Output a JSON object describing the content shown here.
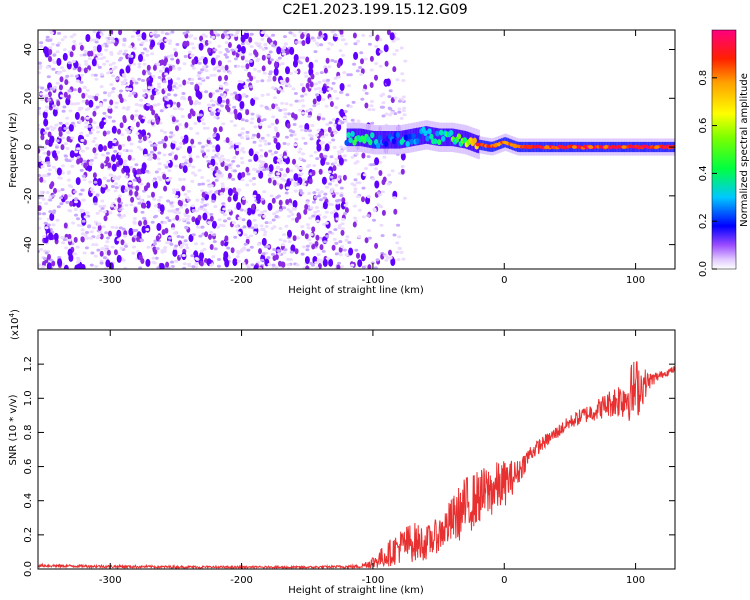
{
  "title": "C2E1.2023.199.15.12.G09",
  "chart_data": [
    {
      "type": "heatmap",
      "xlabel": "Height of straight line (km)",
      "ylabel": "Frequency (Hz)",
      "xlim": [
        -355,
        130
      ],
      "ylim": [
        -50,
        48
      ],
      "xticks": [
        -300,
        -200,
        -100,
        0,
        100
      ],
      "yticks": [
        -40,
        -20,
        0,
        20,
        40
      ],
      "grid": false,
      "colorbar": {
        "label": "Normalized spectral amplitude",
        "range": [
          0,
          1
        ],
        "ticks": [
          "0.0",
          "0.2",
          "0.4",
          "0.6",
          "0.8"
        ],
        "colormap": [
          "#ffffff",
          "#e6d2ff",
          "#8a2be2",
          "#5a00ff",
          "#0000ff",
          "#00c8ff",
          "#00ff70",
          "#7cff00",
          "#ffff00",
          "#ffa500",
          "#ff2000",
          "#ff0080"
        ]
      },
      "noise_region_x": [
        -355,
        -100
      ],
      "signal_track": [
        {
          "x": -120,
          "freq": 4,
          "amp": 0.45
        },
        {
          "x": -110,
          "freq": 4,
          "amp": 0.55
        },
        {
          "x": -100,
          "freq": 3,
          "amp": 0.45
        },
        {
          "x": -90,
          "freq": 3,
          "amp": 0.35
        },
        {
          "x": -80,
          "freq": 3,
          "amp": 0.45
        },
        {
          "x": -70,
          "freq": 4,
          "amp": 0.4
        },
        {
          "x": -60,
          "freq": 5,
          "amp": 0.5
        },
        {
          "x": -50,
          "freq": 4,
          "amp": 0.5
        },
        {
          "x": -40,
          "freq": 4,
          "amp": 0.55
        },
        {
          "x": -30,
          "freq": 3,
          "amp": 0.6
        },
        {
          "x": -20,
          "freq": 1,
          "amp": 0.85
        },
        {
          "x": -10,
          "freq": 0,
          "amp": 0.9
        },
        {
          "x": 0,
          "freq": 2,
          "amp": 0.85
        },
        {
          "x": 10,
          "freq": 0,
          "amp": 0.9
        },
        {
          "x": 20,
          "freq": 0,
          "amp": 0.9
        },
        {
          "x": 40,
          "freq": 0,
          "amp": 0.92
        },
        {
          "x": 60,
          "freq": 0,
          "amp": 0.92
        },
        {
          "x": 80,
          "freq": 0,
          "amp": 0.93
        },
        {
          "x": 100,
          "freq": 0,
          "amp": 0.93
        },
        {
          "x": 130,
          "freq": 0,
          "amp": 0.92
        }
      ]
    },
    {
      "type": "line",
      "xlabel": "Height of straight line (km)",
      "ylabel": "SNR (10 * v/v)",
      "y_multiplier_label": "(x10",
      "y_multiplier_exp": "4",
      "y_multiplier_close": ")",
      "xlim": [
        -355,
        130
      ],
      "ylim": [
        0,
        1.4
      ],
      "xticks": [
        -300,
        -200,
        -100,
        0,
        100
      ],
      "yticks": [
        "0.0",
        "0.2",
        "0.4",
        "0.6",
        "0.8",
        "1.0",
        "1.2"
      ],
      "grid": false,
      "series": [
        {
          "color": "#e83030",
          "x": [
            -355,
            -300,
            -250,
            -200,
            -150,
            -110,
            -100,
            -90,
            -80,
            -70,
            -60,
            -50,
            -40,
            -30,
            -20,
            -10,
            0,
            10,
            20,
            30,
            40,
            50,
            60,
            70,
            80,
            90,
            100,
            110,
            120,
            130
          ],
          "y": [
            0.02,
            0.015,
            0.012,
            0.01,
            0.01,
            0.015,
            0.04,
            0.08,
            0.13,
            0.16,
            0.15,
            0.2,
            0.28,
            0.36,
            0.42,
            0.46,
            0.5,
            0.56,
            0.68,
            0.74,
            0.8,
            0.86,
            0.9,
            0.93,
            0.97,
            1.0,
            1.05,
            1.1,
            1.14,
            1.17
          ],
          "noise": [
            0.008,
            0.008,
            0.007,
            0.007,
            0.006,
            0.01,
            0.04,
            0.07,
            0.1,
            0.12,
            0.1,
            0.1,
            0.14,
            0.18,
            0.16,
            0.16,
            0.14,
            0.08,
            0.05,
            0.04,
            0.04,
            0.04,
            0.05,
            0.06,
            0.08,
            0.12,
            0.2,
            0.05,
            0.02,
            0.02
          ]
        }
      ]
    }
  ]
}
